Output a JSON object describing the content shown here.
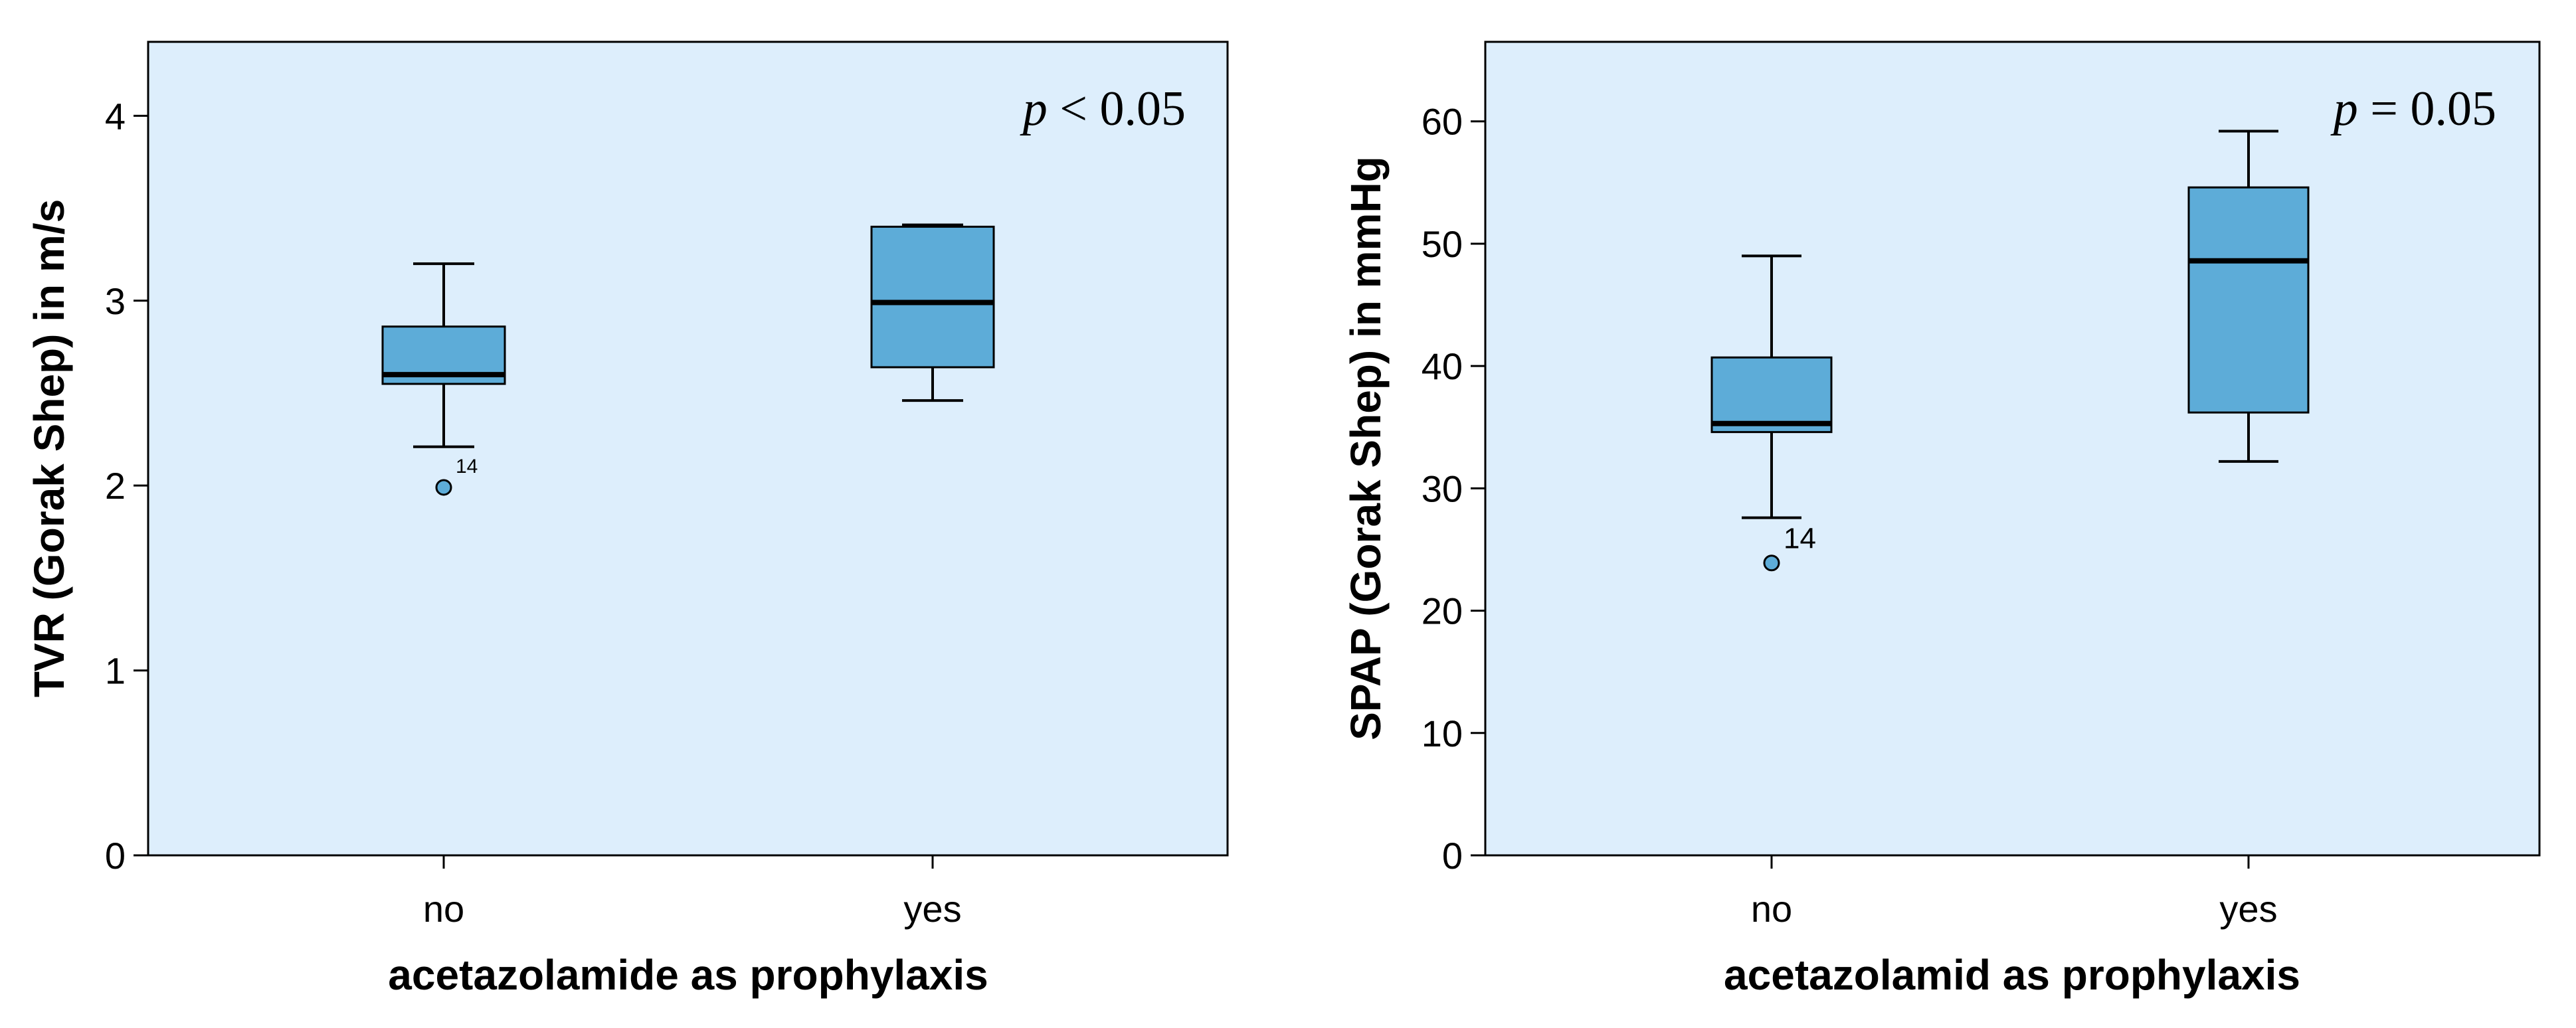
{
  "colors": {
    "plot_background": "#ddeefc",
    "box_fill": "#5dacd8",
    "line": "#000000"
  },
  "chart_data": [
    {
      "type": "box",
      "title": "",
      "xlabel": "acetazolamide as prophylaxis",
      "ylabel": "TVR (Gorak Shep) in m/s",
      "ylim": [
        0,
        4.4
      ],
      "yticks": [
        0,
        1,
        2,
        3,
        4
      ],
      "ytick_labels": [
        "0",
        "1",
        "2",
        "3",
        "4"
      ],
      "categories": [
        "no",
        "yes"
      ],
      "boxes": [
        {
          "category": "no",
          "whisker_low": 2.21,
          "q1": 2.55,
          "median": 2.6,
          "q3": 2.86,
          "whisker_high": 3.2
        },
        {
          "category": "yes",
          "whisker_low": 2.46,
          "q1": 2.64,
          "median": 2.99,
          "q3": 3.4,
          "whisker_high": 3.41
        }
      ],
      "outliers": [
        {
          "category": "no",
          "value": 1.99,
          "label": "14"
        }
      ],
      "annotation": {
        "p_symbol": "p",
        "text": " < 0.05"
      }
    },
    {
      "type": "box",
      "title": "",
      "xlabel": "acetazolamid as prophylaxis",
      "ylabel": "SPAP (Gorak Shep) in mmHg",
      "ylim": [
        0,
        66.5
      ],
      "yticks": [
        0,
        10,
        20,
        30,
        40,
        50,
        60
      ],
      "ytick_labels": [
        "0",
        "10",
        "20",
        "30",
        "40",
        "50",
        "60"
      ],
      "categories": [
        "no",
        "yes"
      ],
      "boxes": [
        {
          "category": "no",
          "whisker_low": 27.6,
          "q1": 34.6,
          "median": 35.3,
          "q3": 40.7,
          "whisker_high": 49.0
        },
        {
          "category": "yes",
          "whisker_low": 32.2,
          "q1": 36.2,
          "median": 48.6,
          "q3": 54.6,
          "whisker_high": 59.2
        }
      ],
      "outliers": [
        {
          "category": "no",
          "value": 23.9,
          "label": "14"
        }
      ],
      "annotation": {
        "p_symbol": "p",
        "text": " = 0.05"
      }
    }
  ]
}
